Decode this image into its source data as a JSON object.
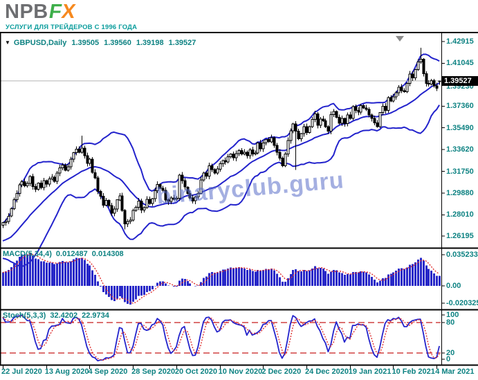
{
  "brand": {
    "name_gray": "NPB",
    "name_f": "F",
    "name_x": "X",
    "tagline": "УСЛУГИ ДЛЯ ТРЕЙДЕРОВ С 1996 ГОДА"
  },
  "quote": {
    "dropdown_icon": "▼",
    "symbol": "GBPUSD,Daily",
    "open": "1.39505",
    "high": "1.39560",
    "low": "1.39198",
    "close": "1.39527"
  },
  "watermark": "binaryclub.guru",
  "price_axis": {
    "labels": [
      "1.42915",
      "1.41045",
      "1.37360",
      "1.35490",
      "1.33620",
      "1.31750",
      "1.29880",
      "1.28010",
      "1.26195"
    ],
    "overlapped": "1.39230",
    "current": "1.39527"
  },
  "macd_panel": {
    "label": "MACD(5,34,4)",
    "value_main": "0.012487",
    "value_signal": "0.014308",
    "axis": [
      "0.035233",
      "0.00",
      "-0.020325"
    ]
  },
  "stoch_panel": {
    "label": "Stoch(5,3,3)",
    "value_main": "32.4202",
    "value_signal": "22.9734",
    "axis": [
      "100",
      "80",
      "20",
      "0"
    ]
  },
  "x_axis": {
    "labels": [
      "22 Jul 2020",
      "13 Aug 2020",
      "4 Sep 2020",
      "28 Sep 2020",
      "20 Oct 2020",
      "10 Nov 2020",
      "2 Dec 2020",
      "24 Dec 2020",
      "19 Jan 2021",
      "10 Feb 2021",
      "4 Mar 2021"
    ]
  },
  "colors": {
    "text_teal": "#0d8282",
    "chart_blue": "#2323cc",
    "hist_blue": "#2828c8",
    "signal_red": "#e03030",
    "level_red": "#d04040",
    "logo_gray": "#6d6e71",
    "logo_green": "#3dae4a",
    "logo_orange": "#f6891f",
    "tagline_teal": "#0a9c9c",
    "watermark_blue": "rgba(90,110,200,0.55)"
  },
  "chart_data": {
    "type": "candlestick",
    "symbol": "GBPUSD",
    "timeframe": "Daily",
    "title": "GBPUSD Daily with Bollinger Bands, MACD and Stochastic",
    "y_axis_ticks": [
      1.42915,
      1.41045,
      1.3923,
      1.3736,
      1.3549,
      1.3362,
      1.3175,
      1.2988,
      1.2801,
      1.26195
    ],
    "x_axis_ticks": [
      "22 Jul 2020",
      "13 Aug 2020",
      "4 Sep 2020",
      "28 Sep 2020",
      "20 Oct 2020",
      "10 Nov 2020",
      "2 Dec 2020",
      "24 Dec 2020",
      "19 Jan 2021",
      "10 Feb 2021",
      "4 Mar 2021"
    ],
    "bars_per_x_tick": 16,
    "current_ohlc": {
      "open": 1.39505,
      "high": 1.3956,
      "low": 1.39198,
      "close": 1.39527
    },
    "indicators": [
      {
        "name": "Bollinger Bands",
        "period": 20,
        "deviation": 2
      },
      {
        "name": "MACD",
        "label": "MACD(5,34,4)",
        "current_main": 0.012487,
        "current_signal": 0.014308,
        "axis": [
          0.035233,
          0.0,
          -0.020325
        ]
      },
      {
        "name": "Stochastic",
        "label": "Stoch(5,3,3)",
        "current_main": 32.4202,
        "current_signal": 22.9734,
        "levels": [
          80,
          20
        ],
        "axis": [
          100,
          80,
          20,
          0
        ]
      }
    ],
    "pre_closes": [
      1.248,
      1.251,
      1.2495,
      1.253,
      1.2505,
      1.2545,
      1.252,
      1.256,
      1.254,
      1.258,
      1.2555,
      1.2595,
      1.262,
      1.265,
      1.268,
      1.271
    ],
    "closes": [
      1.2735,
      1.2745,
      1.279,
      1.2855,
      1.293,
      1.2985,
      1.306,
      1.3085,
      1.305,
      1.307,
      1.313,
      1.3045,
      1.302,
      1.3075,
      1.3035,
      1.3095,
      1.3065,
      1.311,
      1.3125,
      1.309,
      1.316,
      1.3205,
      1.323,
      1.3185,
      1.3215,
      1.328,
      1.3335,
      1.3365,
      1.334,
      1.3375,
      1.331,
      1.3245,
      1.328,
      1.3165,
      1.312,
      1.3003,
      1.296,
      1.2885,
      1.2925,
      1.288,
      1.2815,
      1.285,
      1.293,
      1.2965,
      1.284,
      1.2722,
      1.2745,
      1.2755,
      1.284,
      1.2865,
      1.292,
      1.2843,
      1.2863,
      1.2935,
      1.29,
      1.294,
      1.301,
      1.3063,
      1.303,
      1.3012,
      1.293,
      1.2915,
      1.2945,
      1.2935,
      1.2944,
      1.3143,
      1.3095,
      1.304,
      1.2985,
      1.2947,
      1.2921,
      1.2955,
      1.2986,
      1.31,
      1.316,
      1.3135,
      1.3223,
      1.319,
      1.316,
      1.3195,
      1.324,
      1.3269,
      1.3255,
      1.33,
      1.3323,
      1.329,
      1.3327,
      1.3355,
      1.3324,
      1.3338,
      1.331,
      1.336,
      1.3324,
      1.3334,
      1.342,
      1.337,
      1.342,
      1.3448,
      1.343,
      1.3465,
      1.34,
      1.334,
      1.329,
      1.3223,
      1.3325,
      1.344,
      1.3525,
      1.3582,
      1.352,
      1.3456,
      1.35,
      1.356,
      1.351,
      1.356,
      1.3622,
      1.367,
      1.357,
      1.3625,
      1.361,
      1.356,
      1.352,
      1.3665,
      1.369,
      1.364,
      1.359,
      1.363,
      1.3585,
      1.366,
      1.363,
      1.3733,
      1.37,
      1.3685,
      1.374,
      1.372,
      1.3707,
      1.3662,
      1.363,
      1.3593,
      1.356,
      1.368,
      1.3735,
      1.37,
      1.381,
      1.378,
      1.3814,
      1.385,
      1.39,
      1.387,
      1.386,
      1.393,
      1.4013,
      1.398,
      1.405,
      1.4115,
      1.414,
      1.4015,
      1.3932,
      1.3925,
      1.3955,
      1.391,
      1.389,
      1.39527
    ],
    "extremes": {
      "29": {
        "h": 1.3482
      },
      "45": {
        "l": 1.2676
      },
      "108": {
        "l": 1.3188
      },
      "154": {
        "h": 1.4237
      },
      "161": {
        "o": 1.39505,
        "h": 1.3956,
        "l": 1.39198
      }
    }
  }
}
